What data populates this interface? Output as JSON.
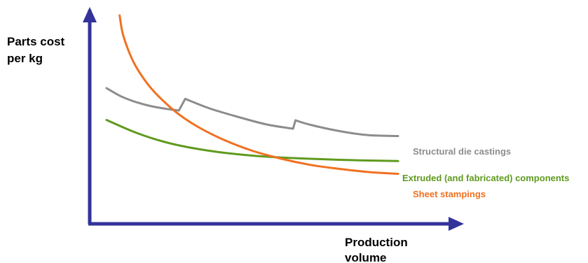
{
  "chart_data": {
    "type": "line",
    "title": "",
    "ylabel_lines": [
      "Parts cost",
      "per kg"
    ],
    "xlabel_lines": [
      "Production",
      "volume"
    ],
    "xlim": [
      0,
      100
    ],
    "ylim": [
      0,
      100
    ],
    "grid": false,
    "legend": "inline labels at right end of each curve",
    "colors": {
      "axis": "#33339a",
      "die_castings": "#8c8c8c",
      "extruded": "#5f9a1e",
      "stampings": "#f07020"
    },
    "series": [
      {
        "key": "die_castings",
        "name": "Structural die castings",
        "points": [
          [
            0,
            58.4
          ],
          [
            5,
            53.7
          ],
          [
            10,
            50.5
          ],
          [
            15,
            48.2
          ],
          [
            20,
            46.7
          ],
          [
            24.8,
            45.6
          ],
          [
            27.0,
            52.3
          ],
          [
            35,
            47.0
          ],
          [
            45,
            42.0
          ],
          [
            55,
            37.6
          ],
          [
            64.0,
            35.2
          ],
          [
            64.8,
            40.0
          ],
          [
            70,
            37.4
          ],
          [
            80,
            33.8
          ],
          [
            90,
            31.5
          ],
          [
            100,
            31.0
          ]
        ]
      },
      {
        "key": "extruded",
        "name": "Extruded (and fabricated) components",
        "points": [
          [
            0,
            40.2
          ],
          [
            10,
            33.0
          ],
          [
            20,
            27.6
          ],
          [
            30,
            24.0
          ],
          [
            40,
            21.5
          ],
          [
            50,
            19.8
          ],
          [
            60,
            18.7
          ],
          [
            70,
            18.0
          ],
          [
            80,
            17.4
          ],
          [
            90,
            17.0
          ],
          [
            100,
            16.7
          ]
        ]
      },
      {
        "key": "stampings",
        "name": "Sheet stampings",
        "points": [
          [
            4.5,
            100
          ],
          [
            5.5,
            90
          ],
          [
            7.5,
            80
          ],
          [
            10,
            71
          ],
          [
            14,
            61
          ],
          [
            18,
            53.5
          ],
          [
            24,
            44.5
          ],
          [
            31,
            36.6
          ],
          [
            40,
            29
          ],
          [
            50,
            22.6
          ],
          [
            60,
            18
          ],
          [
            70,
            14.5
          ],
          [
            80,
            12.2
          ],
          [
            90,
            10.4
          ],
          [
            100,
            9.4
          ]
        ]
      }
    ]
  }
}
